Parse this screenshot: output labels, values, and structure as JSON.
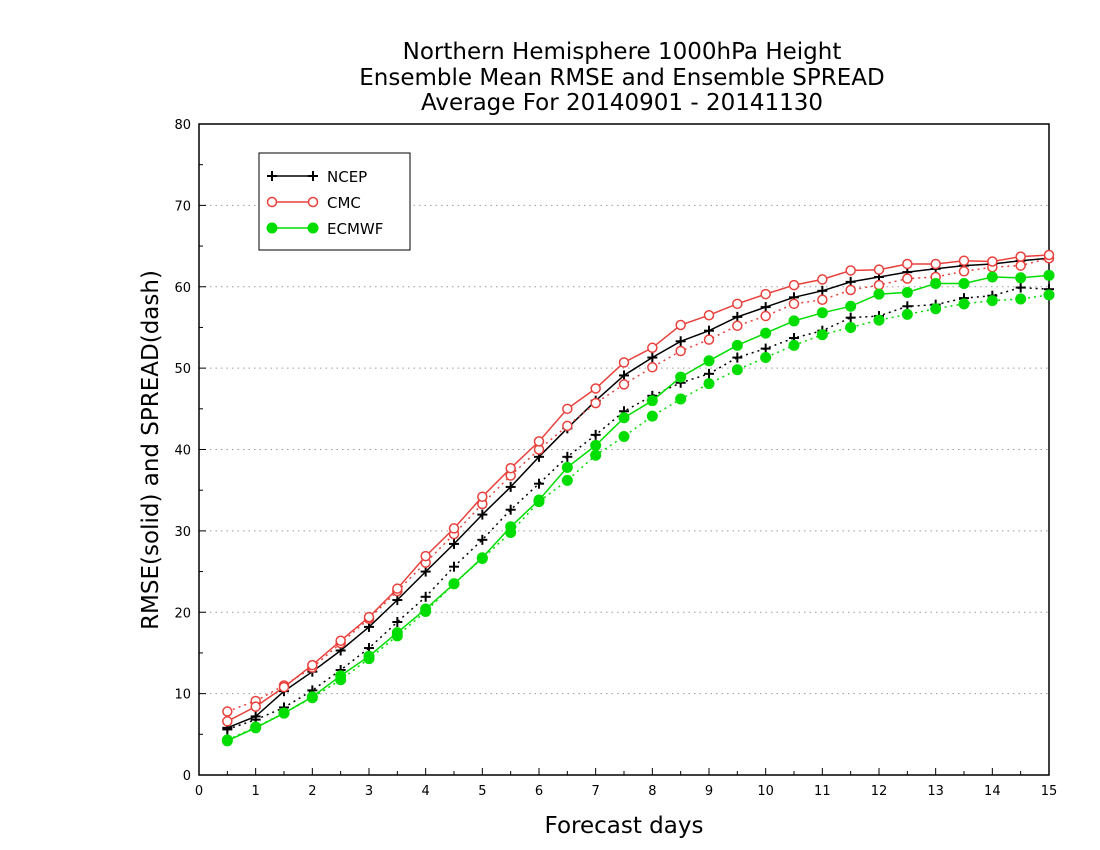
{
  "chart_data": {
    "type": "line",
    "title": [
      "Northern Hemisphere 1000hPa Height",
      "Ensemble Mean RMSE and Ensemble SPREAD",
      "Average For 20140901 - 20141130"
    ],
    "xlabel": "Forecast days",
    "ylabel": "RMSE(solid) and SPREAD(dash)",
    "xlim": [
      0,
      15
    ],
    "ylim": [
      0,
      80
    ],
    "xticks": [
      0,
      1,
      2,
      3,
      4,
      5,
      6,
      7,
      8,
      9,
      10,
      11,
      12,
      13,
      14,
      15
    ],
    "yticks": [
      0,
      10,
      20,
      30,
      40,
      50,
      60,
      70,
      80
    ],
    "grid": "horizontal dotted",
    "legend_position": "top-left",
    "x": [
      0.5,
      1,
      1.5,
      2,
      2.5,
      3,
      3.5,
      4,
      4.5,
      5,
      5.5,
      6,
      6.5,
      7,
      7.5,
      8,
      8.5,
      9,
      9.5,
      10,
      10.5,
      11,
      11.5,
      12,
      12.5,
      13,
      13.5,
      14,
      14.5,
      15
    ],
    "series": [
      {
        "name": "NCEP",
        "color": "#000000",
        "marker": "plus",
        "rmse": [
          5.8,
          7.2,
          10.3,
          12.7,
          15.3,
          18.2,
          21.5,
          25.0,
          28.4,
          32.0,
          35.4,
          39.1,
          42.6,
          46.0,
          49.1,
          51.3,
          53.3,
          54.6,
          56.3,
          57.5,
          58.7,
          59.5,
          60.6,
          61.2,
          61.8,
          62.2,
          62.6,
          62.8,
          63.2,
          63.5
        ],
        "spread": [
          5.6,
          6.8,
          8.3,
          10.4,
          12.9,
          15.6,
          18.8,
          21.9,
          25.6,
          28.9,
          32.6,
          35.8,
          39.1,
          41.8,
          44.7,
          46.6,
          48.2,
          49.3,
          51.3,
          52.4,
          53.7,
          54.6,
          56.2,
          56.4,
          57.6,
          57.8,
          58.6,
          58.9,
          59.9,
          59.7
        ]
      },
      {
        "name": "CMC",
        "color": "#e8413c",
        "marker": "open-circle",
        "rmse": [
          6.6,
          8.4,
          10.8,
          13.5,
          16.5,
          19.4,
          22.9,
          26.9,
          30.3,
          34.2,
          37.7,
          41.0,
          45.0,
          47.5,
          50.7,
          52.5,
          55.3,
          56.5,
          57.9,
          59.1,
          60.2,
          60.9,
          62.0,
          62.1,
          62.8,
          62.8,
          63.2,
          63.1,
          63.7,
          63.9
        ],
        "spread": [
          7.8,
          9.1,
          11.0,
          13.2,
          16.2,
          19.2,
          22.6,
          26.1,
          29.6,
          33.3,
          36.8,
          40.0,
          42.9,
          45.7,
          48.0,
          50.1,
          52.1,
          53.5,
          55.2,
          56.4,
          57.9,
          58.4,
          59.6,
          60.2,
          61.0,
          61.2,
          61.9,
          62.4,
          62.6,
          63.5
        ]
      },
      {
        "name": "ECMWF",
        "color": "#00dd00",
        "marker": "filled-circle",
        "rmse": [
          4.2,
          5.8,
          7.6,
          9.6,
          12.2,
          14.6,
          17.5,
          20.4,
          23.5,
          26.7,
          30.5,
          33.8,
          37.8,
          40.5,
          43.9,
          46.0,
          48.9,
          50.9,
          52.8,
          54.3,
          55.8,
          56.8,
          57.6,
          59.1,
          59.3,
          60.4,
          60.4,
          61.2,
          61.1,
          61.4
        ],
        "spread": [
          4.3,
          5.9,
          7.6,
          9.5,
          11.7,
          14.3,
          17.1,
          20.1,
          23.5,
          26.6,
          29.8,
          33.6,
          36.2,
          39.3,
          41.6,
          44.1,
          46.2,
          48.1,
          49.8,
          51.3,
          52.8,
          54.1,
          55.0,
          55.9,
          56.6,
          57.3,
          57.9,
          58.3,
          58.5,
          59.0
        ]
      }
    ]
  }
}
